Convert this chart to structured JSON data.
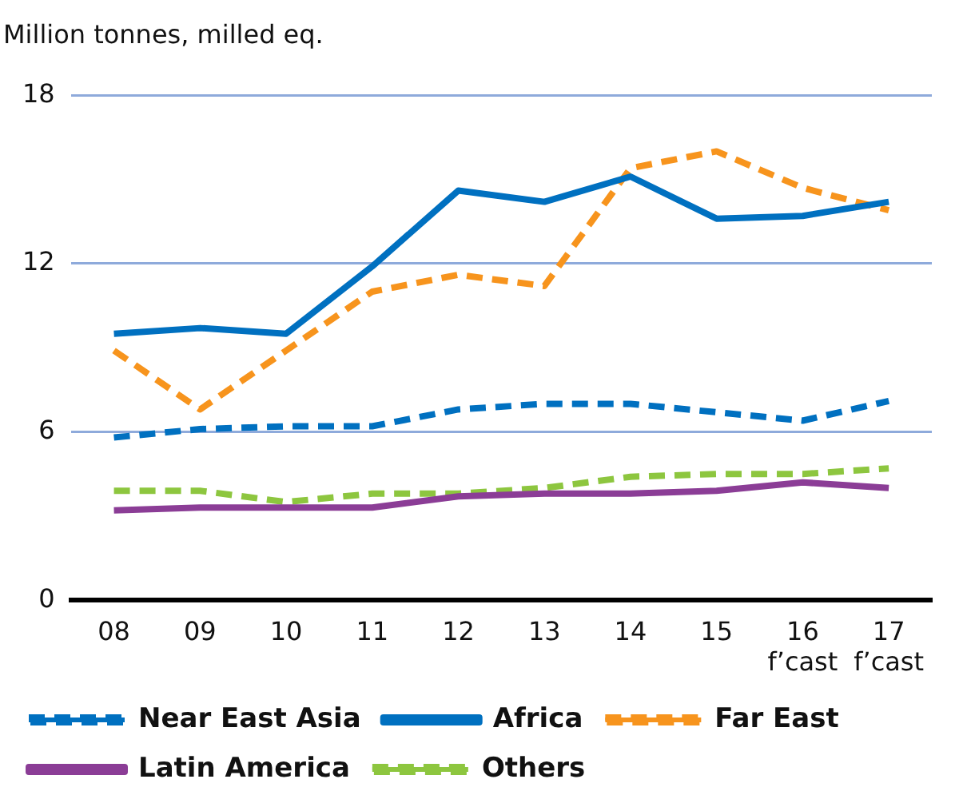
{
  "chart_data": {
    "type": "line",
    "ylabel": "Million tonnes, milled eq.",
    "categories": [
      "08",
      "09",
      "10",
      "11",
      "12",
      "13",
      "14",
      "15",
      "16\nf’cast",
      "17\nf’cast"
    ],
    "ylim": [
      0,
      18
    ],
    "yticks": [
      0,
      6,
      12,
      18
    ],
    "grid": "y",
    "legend": "bottom",
    "marker": "none",
    "series": [
      {
        "name": "Near East Asia",
        "color": "#0070c0",
        "line_style": "dashed",
        "values": [
          5.8,
          6.1,
          6.2,
          6.2,
          6.8,
          7.0,
          7.0,
          6.7,
          6.4,
          7.1
        ]
      },
      {
        "name": "Africa",
        "color": "#0070c0",
        "line_style": "solid",
        "values": [
          9.5,
          9.7,
          9.5,
          11.9,
          14.6,
          14.2,
          15.1,
          13.6,
          13.7,
          14.2
        ]
      },
      {
        "name": "Far East",
        "color": "#f7941d",
        "line_style": "dashed",
        "values": [
          8.9,
          6.8,
          8.9,
          11.0,
          11.6,
          11.2,
          15.4,
          16.0,
          14.7,
          13.9
        ]
      },
      {
        "name": "Latin America",
        "color": "#8b3d96",
        "line_style": "solid",
        "values": [
          3.2,
          3.3,
          3.3,
          3.3,
          3.7,
          3.8,
          3.8,
          3.9,
          4.2,
          4.0
        ]
      },
      {
        "name": "Others",
        "color": "#8dc63f",
        "line_style": "dashed",
        "values": [
          3.9,
          3.9,
          3.5,
          3.8,
          3.8,
          4.0,
          4.4,
          4.5,
          4.5,
          4.7
        ]
      }
    ]
  }
}
